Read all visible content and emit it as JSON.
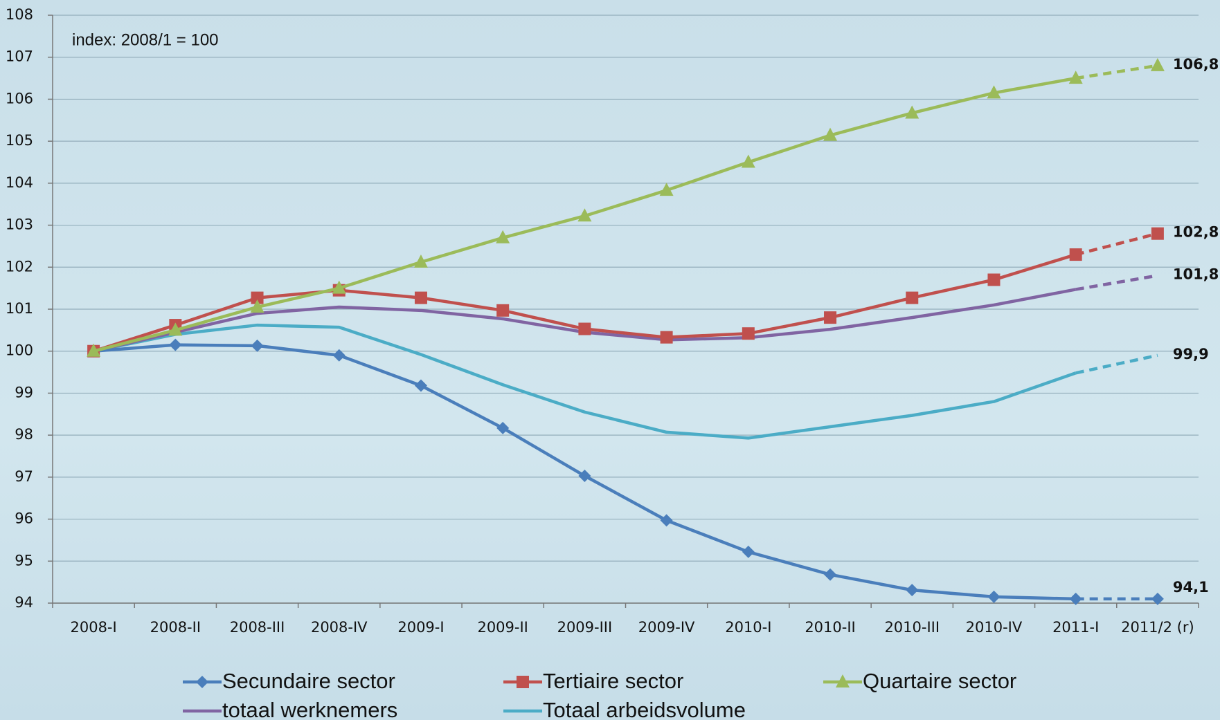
{
  "chart_data": {
    "type": "line",
    "annotation": "index: 2008/1 = 100",
    "categories": [
      "2008-I",
      "2008-II",
      "2008-III",
      "2008-IV",
      "2009-I",
      "2009-II",
      "2009-III",
      "2009-IV",
      "2010-I",
      "2010-II",
      "2010-III",
      "2010-IV",
      "2011-I",
      "2011/2 (r)"
    ],
    "ylim": [
      94,
      108
    ],
    "yticks": [
      94,
      95,
      96,
      97,
      98,
      99,
      100,
      101,
      102,
      103,
      104,
      105,
      106,
      107,
      108
    ],
    "grid": true,
    "series": [
      {
        "name": "Secundaire sector",
        "color": "#4a7ebb",
        "marker": "diamond",
        "values": [
          100,
          100.15,
          100.13,
          99.9,
          99.18,
          98.17,
          97.03,
          95.97,
          95.22,
          94.68,
          94.31,
          94.15,
          94.1,
          94.1
        ],
        "value_labels": [
          null,
          null,
          null,
          null,
          null,
          null,
          null,
          null,
          null,
          null,
          null,
          null,
          null,
          "94,1"
        ]
      },
      {
        "name": "Tertiaire sector",
        "color": "#c0504d",
        "marker": "square",
        "values": [
          100,
          100.62,
          101.27,
          101.45,
          101.27,
          100.97,
          100.53,
          100.33,
          100.42,
          100.8,
          101.27,
          101.7,
          102.3,
          102.8
        ],
        "value_labels": [
          null,
          null,
          null,
          null,
          null,
          null,
          null,
          null,
          null,
          null,
          null,
          null,
          null,
          "102,8"
        ]
      },
      {
        "name": "Quartaire sector",
        "color": "#9bbb59",
        "marker": "triangle",
        "values": [
          100,
          100.5,
          101.05,
          101.5,
          102.12,
          102.7,
          103.22,
          103.83,
          104.5,
          105.14,
          105.67,
          106.15,
          106.5,
          106.8
        ],
        "value_labels": [
          null,
          null,
          null,
          null,
          null,
          null,
          null,
          null,
          null,
          null,
          null,
          null,
          null,
          "106,8"
        ]
      },
      {
        "name": "totaal werknemers",
        "color": "#8064a2",
        "marker": "none",
        "values": [
          100,
          100.45,
          100.9,
          101.05,
          100.97,
          100.77,
          100.45,
          100.27,
          100.32,
          100.52,
          100.8,
          101.1,
          101.47,
          101.8
        ],
        "value_labels": [
          null,
          null,
          null,
          null,
          null,
          null,
          null,
          null,
          null,
          null,
          null,
          null,
          null,
          "101,8"
        ]
      },
      {
        "name": "Totaal arbeidsvolume",
        "color": "#4bacc6",
        "marker": "none",
        "values": [
          100,
          100.4,
          100.62,
          100.57,
          99.92,
          99.2,
          98.55,
          98.07,
          97.93,
          98.2,
          98.47,
          98.8,
          99.48,
          99.9
        ],
        "value_labels": [
          null,
          null,
          null,
          null,
          null,
          null,
          null,
          null,
          null,
          null,
          null,
          null,
          null,
          "99,9"
        ]
      }
    ]
  }
}
